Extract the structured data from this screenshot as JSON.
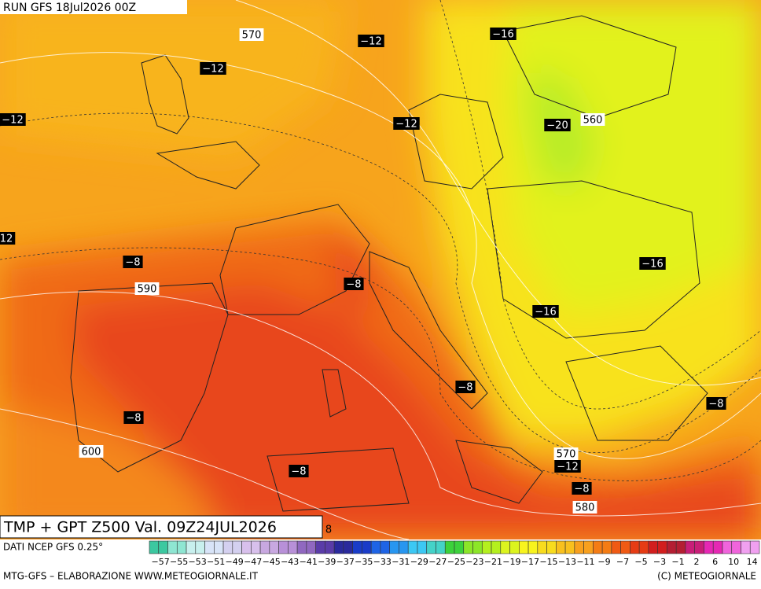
{
  "header": {
    "run": "RUN GFS 18Jul2026 00Z"
  },
  "map": {
    "validity": "TMP + GPT Z500 Val. 09Z24JUL2026",
    "contour_labels": [
      "570",
      "−12",
      "−16",
      "−12",
      "−12",
      "−12",
      "−20",
      "560",
      "12",
      "−8",
      "590",
      "−8",
      "−16",
      "−16",
      "−8",
      "−8",
      "−8",
      "600",
      "−8",
      "570",
      "−12",
      "−8",
      "580",
      "8"
    ]
  },
  "legend": {
    "source": "DATI NCEP GFS 0.25°",
    "colors": [
      "#3cc8a0",
      "#8ee6d2",
      "#c8f0ee",
      "#d8e4f8",
      "#d4d0f0",
      "#d8c0ec",
      "#c8a8e0",
      "#b890d8",
      "#9068c0",
      "#5a3ca8",
      "#2a2a9c",
      "#1a3cc8",
      "#1e64e6",
      "#2896f0",
      "#3cc8f4",
      "#44d2c8",
      "#3cd23c",
      "#8ce628",
      "#b4f01e",
      "#dcf41e",
      "#f8f41e",
      "#f8dc1e",
      "#f8c01e",
      "#f8a01e",
      "#f47c14",
      "#f05a14",
      "#e63c14",
      "#d21e1e",
      "#b41e32",
      "#c81e78",
      "#e628b4",
      "#f064dc",
      "#f0a0f0"
    ],
    "labels": [
      "−57",
      "−55",
      "−53",
      "−51",
      "−49",
      "−47",
      "−45",
      "−43",
      "−41",
      "−39",
      "−37",
      "−35",
      "−33",
      "−31",
      "−29",
      "−27",
      "−25",
      "−23",
      "−21",
      "−19",
      "−17",
      "−15",
      "−13",
      "−11",
      "−9",
      "−7",
      "−5",
      "−3",
      "−1",
      "2",
      "6",
      "10",
      "14"
    ]
  },
  "footer": {
    "credit": "MTG-GFS – ELABORAZIONE WWW.METEOGIORNALE.IT",
    "copyright": "(C) METEOGIORNALE"
  }
}
